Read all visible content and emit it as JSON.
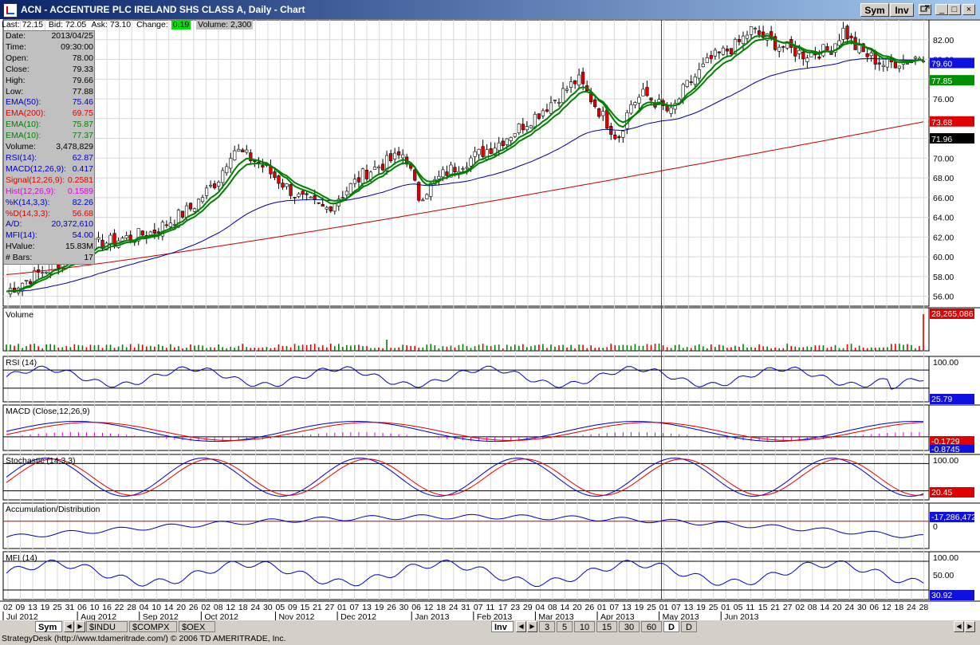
{
  "window": {
    "title": "ACN - ACCENTURE PLC IRELAND SHS CLASS A, Daily - Chart",
    "sym_button": "Sym",
    "inv_button": "Inv",
    "min_label": "_",
    "max_label": "□",
    "close_label": "×"
  },
  "quote": {
    "last": "Last: 72.15",
    "bid": "Bid: 72.05",
    "ask": "Ask: 73.10",
    "change_label": "Change:",
    "change": "0.19",
    "volume": "Volume: 2,300"
  },
  "info": [
    {
      "label": "Date:",
      "value": "2013/04/25",
      "color": "#000000"
    },
    {
      "label": "Time:",
      "value": "09:30:00",
      "color": "#000000"
    },
    {
      "label": "Open:",
      "value": "78.00",
      "color": "#000000"
    },
    {
      "label": "Close:",
      "value": "79.33",
      "color": "#000000"
    },
    {
      "label": "High:",
      "value": "79.66",
      "color": "#000000"
    },
    {
      "label": "Low:",
      "value": "77.88",
      "color": "#000000"
    },
    {
      "label": "EMA(50):",
      "value": "75.46",
      "color": "#0000c0"
    },
    {
      "label": "EMA(200):",
      "value": "69.75",
      "color": "#e00000"
    },
    {
      "label": "EMA(10):",
      "value": "75.87",
      "color": "#008000"
    },
    {
      "label": "EMA(10):",
      "value": "77.37",
      "color": "#008000"
    },
    {
      "label": "Volume:",
      "value": "3,478,829",
      "color": "#000000"
    },
    {
      "label": "RSI(14):",
      "value": "62.87",
      "color": "#0000c0"
    },
    {
      "label": "MACD(12,26,9):",
      "value": "0.417",
      "color": "#0000c0"
    },
    {
      "label": "Signal(12,26,9):",
      "value": "0.2581",
      "color": "#e00000"
    },
    {
      "label": "Hist(12,26,9):",
      "value": "0.1589",
      "color": "#e000e0"
    },
    {
      "label": "%K(14,3,3):",
      "value": "82.26",
      "color": "#0000c0"
    },
    {
      "label": "%D(14,3,3):",
      "value": "56.68",
      "color": "#e00000"
    },
    {
      "label": "A/D:",
      "value": "20,372,610",
      "color": "#0000c0"
    },
    {
      "label": "MFI(14):",
      "value": "54.00",
      "color": "#0000c0"
    },
    {
      "label": "HValue:",
      "value": "15.83M",
      "color": "#000000"
    },
    {
      "label": "# Bars:",
      "value": "17",
      "color": "#000000"
    }
  ],
  "price_axis": {
    "ticks": [
      "82.00",
      "80.00",
      "78.00",
      "76.00",
      "74.00",
      "72.00",
      "70.00",
      "68.00",
      "66.00",
      "64.00",
      "62.00",
      "60.00",
      "58.00",
      "56.00"
    ],
    "ylim": [
      55,
      84
    ],
    "tags": [
      {
        "label": "79.60",
        "bg": "#1010e0",
        "fg": "#ffffff",
        "value": 79.6
      },
      {
        "label": "77.85",
        "bg": "#009000",
        "fg": "#ffffff",
        "value": 77.85
      },
      {
        "label": "73.68",
        "bg": "#e00000",
        "fg": "#ffffff",
        "value": 73.68
      },
      {
        "label": "71.96",
        "bg": "#000000",
        "fg": "#ffffff",
        "value": 71.96
      }
    ]
  },
  "panels": {
    "volume": {
      "title": "Volume",
      "tag": "28,265,086"
    },
    "rsi": {
      "title": "RSI (14)",
      "top": "100.00",
      "tag": "25.79"
    },
    "macd": {
      "title": "MACD (Close,12,26,9)",
      "tag1": "-0.1729",
      "tag2": "-0.8745"
    },
    "stoch": {
      "title": "Stochastic (14,3,3)",
      "top": "100.00",
      "tag": "20.45"
    },
    "ad": {
      "title": "Accumulation/Distribution",
      "tag": "-17,286,472",
      "zero": "0"
    },
    "mfi": {
      "title": "MFI (14)",
      "top": "100.00",
      "mid": "50.00",
      "tag": "30.92"
    }
  },
  "x_axis": {
    "days": [
      "02",
      "09",
      "13",
      "19",
      "25",
      "31",
      "06",
      "10",
      "16",
      "22",
      "28",
      "04",
      "10",
      "14",
      "20",
      "26",
      "02",
      "08",
      "12",
      "18",
      "24",
      "30",
      "05",
      "09",
      "15",
      "21",
      "27",
      "01",
      "07",
      "13",
      "19",
      "26",
      "30",
      "06",
      "12",
      "18",
      "24",
      "31",
      "07",
      "11",
      "17",
      "23",
      "29",
      "04",
      "08",
      "14",
      "20",
      "26",
      "01",
      "07",
      "13",
      "19",
      "25",
      "01",
      "07",
      "13",
      "19",
      "25",
      "01",
      "05",
      "11",
      "15",
      "21",
      "27",
      "02",
      "08",
      "14",
      "20",
      "24",
      "30",
      "06",
      "12",
      "18",
      "24",
      "28"
    ],
    "months": [
      {
        "label": "Jul 2012",
        "index": 0
      },
      {
        "label": "Aug 2012",
        "index": 6
      },
      {
        "label": "Sep 2012",
        "index": 11
      },
      {
        "label": "Oct 2012",
        "index": 16
      },
      {
        "label": "Nov 2012",
        "index": 22
      },
      {
        "label": "Dec 2012",
        "index": 27
      },
      {
        "label": "Jan 2013",
        "index": 33
      },
      {
        "label": "Feb 2013",
        "index": 38
      },
      {
        "label": "Mar 2013",
        "index": 43
      },
      {
        "label": "Apr 2013",
        "index": 48
      },
      {
        "label": "May 2013",
        "index": 53
      },
      {
        "label": "Jun 2013",
        "index": 58
      }
    ]
  },
  "chart_data": {
    "type": "line",
    "title": "ACN - ACCENTURE PLC IRELAND SHS CLASS A, Daily - Chart",
    "x": [
      "Jul 2012",
      "Aug 2012",
      "Sep 2012",
      "Oct 2012",
      "Nov 2012",
      "Dec 2012",
      "Jan 2013",
      "Feb 2013",
      "Mar 2013",
      "Apr 2013",
      "May 2013",
      "Jun 2013"
    ],
    "ylim": [
      55,
      84
    ],
    "series": [
      {
        "name": "Close",
        "values": [
          58.5,
          61.5,
          65.5,
          69.5,
          66.0,
          70.0,
          69.0,
          74.0,
          77.0,
          76.5,
          81.5,
          80.0
        ]
      },
      {
        "name": "EMA(50)",
        "values": [
          59.0,
          60.5,
          62.5,
          66.0,
          66.5,
          68.0,
          69.0,
          71.0,
          74.0,
          75.0,
          78.5,
          79.6
        ]
      },
      {
        "name": "EMA(200)",
        "values": [
          58.5,
          59.0,
          59.8,
          61.0,
          62.5,
          64.0,
          65.0,
          66.5,
          68.0,
          69.5,
          71.5,
          73.68
        ]
      }
    ],
    "grid": true
  },
  "bottom": {
    "sym_tab": "Sym",
    "tabs": [
      "$INDU",
      "$COMPX",
      "$OEX"
    ],
    "inv_tab": "Inv",
    "periods": [
      "3",
      "5",
      "10",
      "15",
      "30",
      "60",
      "D",
      "D"
    ],
    "status": "StrategyDesk (http://www.tdameritrade.com/) © 2006 TD AMERITRADE, Inc."
  }
}
